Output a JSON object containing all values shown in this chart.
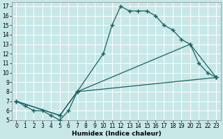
{
  "xlabel": "Humidex (Indice chaleur)",
  "bg_color": "#c8e8e8",
  "grid_color": "#ffffff",
  "line_color": "#1a6060",
  "xlim": [
    -0.5,
    23.5
  ],
  "ylim": [
    5,
    17.4
  ],
  "xticks": [
    0,
    1,
    2,
    3,
    4,
    5,
    6,
    7,
    8,
    9,
    10,
    11,
    12,
    13,
    14,
    15,
    16,
    17,
    18,
    19,
    20,
    21,
    22,
    23
  ],
  "yticks": [
    5,
    6,
    7,
    8,
    9,
    10,
    11,
    12,
    13,
    14,
    15,
    16,
    17
  ],
  "line1_x": [
    0,
    1,
    2,
    3,
    4,
    5,
    6,
    7,
    10,
    11,
    12,
    13,
    14,
    15,
    16,
    17,
    18,
    19,
    20,
    21,
    22,
    23
  ],
  "line1_y": [
    7,
    6.5,
    6,
    6,
    5.5,
    5,
    6,
    8,
    12,
    15,
    17,
    16.5,
    16.5,
    16.5,
    16,
    15,
    14.5,
    13.5,
    13,
    11,
    10,
    9.5
  ],
  "line2_x": [
    0,
    5,
    7,
    23
  ],
  "line2_y": [
    7,
    5.5,
    8,
    9.5
  ],
  "line3_x": [
    0,
    5,
    7,
    20,
    23
  ],
  "line3_y": [
    7,
    5.5,
    8,
    13,
    9.5
  ],
  "tick_fontsize": 5.5,
  "xlabel_fontsize": 6.5
}
